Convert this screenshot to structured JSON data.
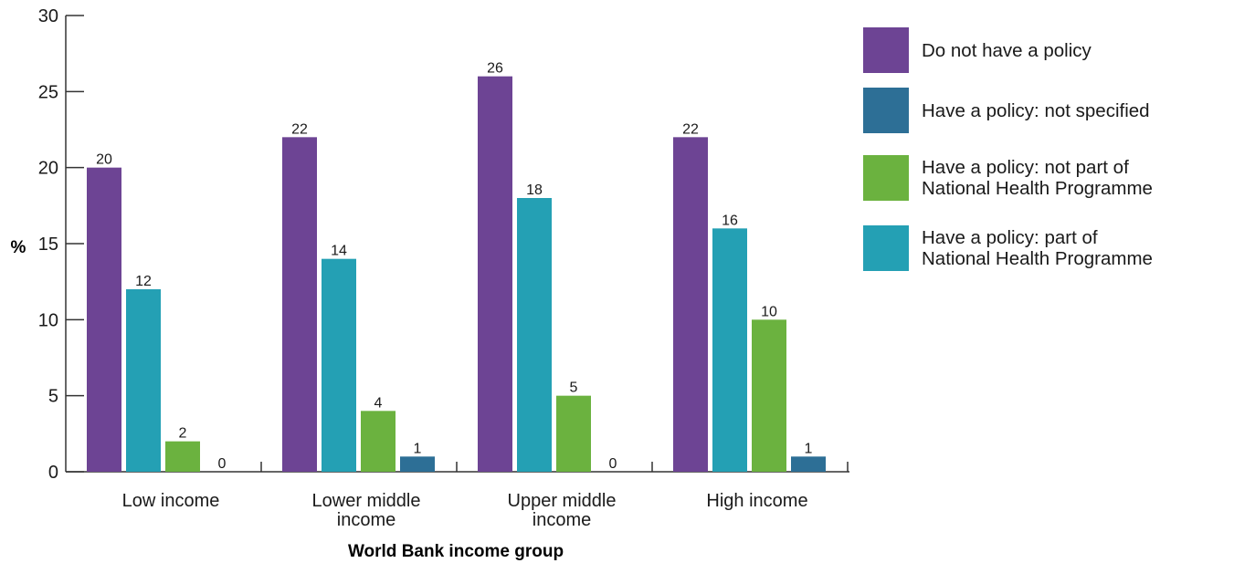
{
  "chart_data": {
    "type": "bar",
    "title": "",
    "xlabel": "World Bank income group",
    "ylabel": "%",
    "ylim": [
      0,
      30
    ],
    "yticks": [
      0,
      5,
      10,
      15,
      20,
      25,
      30
    ],
    "categories": [
      "Low income",
      "Lower middle\nincome",
      "Upper middle\nincome",
      "High income"
    ],
    "series": [
      {
        "name": "Do not have a policy",
        "color": "#6d4494",
        "values": [
          20,
          22,
          26,
          22
        ]
      },
      {
        "name": "Have a policy: part of\nNational Health Programme",
        "color": "#24a0b4",
        "values": [
          12,
          14,
          18,
          16
        ]
      },
      {
        "name": "Have a policy: not part of\nNational Health Programme",
        "color": "#6bb23f",
        "values": [
          2,
          4,
          5,
          10
        ]
      },
      {
        "name": "Have a policy: not specified",
        "color": "#2d6f96",
        "values": [
          0,
          1,
          0,
          1
        ]
      }
    ],
    "legend": {
      "placement": "right",
      "order": [
        "Do not have a policy",
        "Have a policy: not specified",
        "Have a policy: not part of\nNational Health Programme",
        "Have a policy: part of\nNational Health Programme"
      ]
    },
    "grid": false,
    "data_labels": true
  }
}
